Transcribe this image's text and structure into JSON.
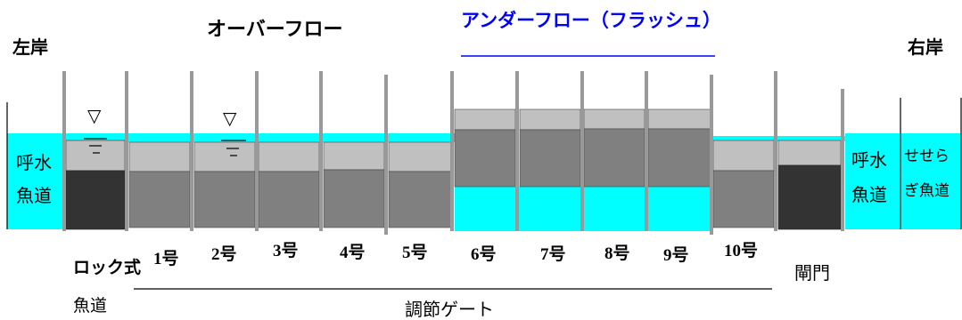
{
  "labels": {
    "left_bank": "左岸",
    "right_bank": "右岸",
    "overflow": "オーバーフロー",
    "underflow": "アンダーフロー（フラッシュ）",
    "rock_fishway_line1": "ロック式",
    "rock_fishway_line2": "魚道",
    "call_water_left_line1": "呼水",
    "call_water_left_line2": "魚道",
    "call_water_right_line1": "呼水",
    "call_water_right_line2": "魚道",
    "seseragi_line1": "せせら",
    "seseragi_line2": "ぎ魚道",
    "lock_gate": "閘門",
    "control_gates": "調節ゲート",
    "water_level_symbol": "▽",
    "gates": [
      "1号",
      "2号",
      "3号",
      "4号",
      "5号",
      "6号",
      "7号",
      "8号",
      "9号",
      "10号"
    ]
  },
  "colors": {
    "water": "#00ffff",
    "gate_light": "#c0c0c0",
    "gate_mid": "#808080",
    "gate_dark": "#333333",
    "pier": "#999999",
    "underflow_text": "#0000ff",
    "text": "#000000"
  }
}
